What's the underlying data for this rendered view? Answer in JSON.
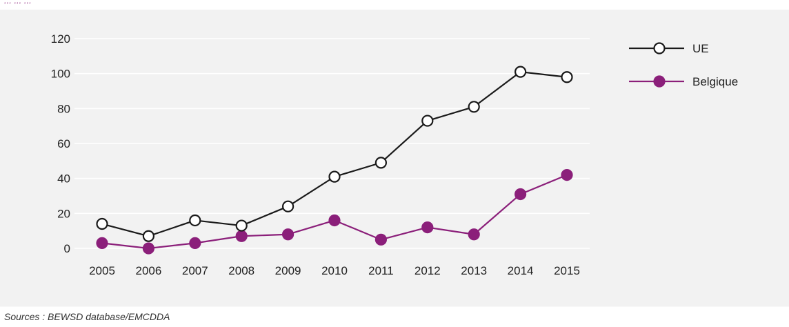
{
  "page": {
    "title_fragment": "...                                    ...  ... ",
    "source": "Sources : BEWSD database/EMCDDA"
  },
  "colors": {
    "series_ue": "#1a1a1a",
    "series_belgique": "#8b1f7a",
    "panel_background": "#f2f2f2",
    "gridline": "#ffffff"
  },
  "chart_data": {
    "type": "line",
    "title": "",
    "xlabel": "",
    "ylabel": "",
    "x": [
      2005,
      2006,
      2007,
      2008,
      2009,
      2010,
      2011,
      2012,
      2013,
      2014,
      2015
    ],
    "x_tick_labels": [
      "2005",
      "2006",
      "2007",
      "2008",
      "2009",
      "2010",
      "2011",
      "2012",
      "2013",
      "2014",
      "2015"
    ],
    "y_ticks": [
      0,
      20,
      40,
      60,
      80,
      100,
      120
    ],
    "y_tick_labels": [
      "0",
      "20",
      "40",
      "60",
      "80",
      "100",
      "120"
    ],
    "ylim": [
      0,
      120
    ],
    "grid": true,
    "legend_position": "top-right",
    "series": [
      {
        "name": "UE",
        "marker": "open-circle",
        "values": [
          14,
          7,
          16,
          13,
          24,
          41,
          49,
          73,
          81,
          101,
          98
        ]
      },
      {
        "name": "Belgique",
        "marker": "filled-circle",
        "values": [
          3,
          0,
          3,
          7,
          8,
          16,
          5,
          12,
          8,
          31,
          42
        ]
      }
    ]
  }
}
